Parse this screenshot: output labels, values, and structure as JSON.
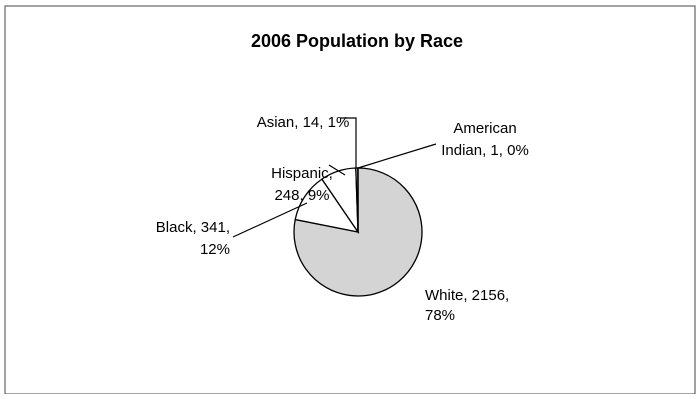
{
  "chart_data": {
    "type": "pie",
    "title": "2006 Population by Race",
    "slices": [
      {
        "name": "White",
        "value": 2156,
        "percent": 78,
        "color": "#d4d4d4",
        "label_lines": [
          "White, 2156,",
          "78%"
        ]
      },
      {
        "name": "Black",
        "value": 341,
        "percent": 12,
        "color": "#ffffff",
        "label_lines": [
          "Black, 341,",
          "12%"
        ]
      },
      {
        "name": "Hispanic",
        "value": 248,
        "percent": 9,
        "color": "#ffffff",
        "label_lines": [
          "Hispanic,",
          "248, 9%"
        ]
      },
      {
        "name": "Asian",
        "value": 14,
        "percent": 1,
        "color": "#ffffff",
        "label_lines": [
          "Asian, 14, 1%"
        ]
      },
      {
        "name": "American Indian",
        "value": 1,
        "percent": 0,
        "color": "#ffffff",
        "label_lines": [
          "American",
          "Indian, 1, 0%"
        ]
      }
    ],
    "legend": "none",
    "data_labels": "category, value, percent"
  }
}
